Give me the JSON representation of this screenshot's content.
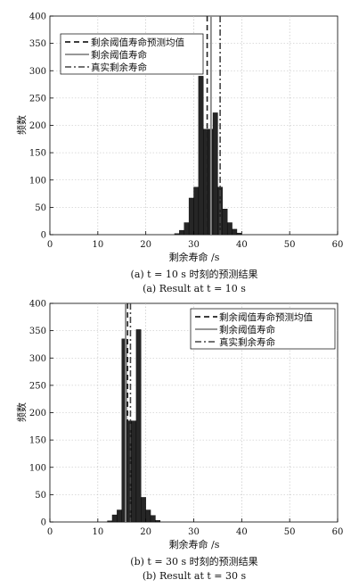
{
  "chart_data": [
    {
      "type": "bar",
      "caption_cn": "(a) t = 10 s 时刻的预测结果",
      "caption_en": "(a) Result at t = 10 s",
      "xlabel": "剩余寿命  /s",
      "ylabel": "频数",
      "xlim": [
        0,
        60
      ],
      "ylim": [
        0,
        400
      ],
      "xticks": [
        "0",
        "10",
        "20",
        "30",
        "40",
        "50",
        "60"
      ],
      "yticks": [
        "0",
        "50",
        "100",
        "150",
        "200",
        "250",
        "300",
        "350",
        "400"
      ],
      "grid": true,
      "legend_position": "top-left",
      "bins": [
        {
          "x0": 26,
          "x1": 27,
          "count": 2
        },
        {
          "x0": 27,
          "x1": 28,
          "count": 8
        },
        {
          "x0": 28,
          "x1": 29,
          "count": 22
        },
        {
          "x0": 29,
          "x1": 30,
          "count": 67
        },
        {
          "x0": 30,
          "x1": 31,
          "count": 87
        },
        {
          "x0": 31,
          "x1": 32,
          "count": 290
        },
        {
          "x0": 32,
          "x1": 33,
          "count": 193
        },
        {
          "x0": 33,
          "x1": 34,
          "count": 193
        },
        {
          "x0": 34,
          "x1": 35,
          "count": 223
        },
        {
          "x0": 35,
          "x1": 36,
          "count": 87
        },
        {
          "x0": 36,
          "x1": 37,
          "count": 47
        },
        {
          "x0": 37,
          "x1": 38,
          "count": 22
        },
        {
          "x0": 38,
          "x1": 39,
          "count": 10
        },
        {
          "x0": 39,
          "x1": 40,
          "count": 3
        }
      ],
      "lines": [
        {
          "name": "剩余阈值寿命预测均值",
          "x": 32.8,
          "style": "dashed",
          "color": "#222222"
        },
        {
          "name": "剩余阈值寿命",
          "x": 33.6,
          "style": "solid",
          "color": "#888888"
        },
        {
          "name": "真实剩余寿命",
          "x": 35.5,
          "style": "dashdot",
          "color": "#444444"
        }
      ]
    },
    {
      "type": "bar",
      "caption_cn": "(b) t = 30 s 时刻的预测结果",
      "caption_en": "(b) Result at t = 30 s",
      "xlabel": "剩余寿命  /s",
      "ylabel": "频数",
      "xlim": [
        0,
        60
      ],
      "ylim": [
        0,
        400
      ],
      "xticks": [
        "0",
        "10",
        "20",
        "30",
        "40",
        "50",
        "60"
      ],
      "yticks": [
        "0",
        "50",
        "100",
        "150",
        "200",
        "250",
        "300",
        "350",
        "400"
      ],
      "grid": true,
      "legend_position": "top-right",
      "bins": [
        {
          "x0": 12,
          "x1": 13,
          "count": 2
        },
        {
          "x0": 13,
          "x1": 14,
          "count": 13
        },
        {
          "x0": 14,
          "x1": 15,
          "count": 22
        },
        {
          "x0": 15,
          "x1": 16,
          "count": 335
        },
        {
          "x0": 16,
          "x1": 17,
          "count": 185
        },
        {
          "x0": 17,
          "x1": 18,
          "count": 185
        },
        {
          "x0": 18,
          "x1": 19,
          "count": 352
        },
        {
          "x0": 19,
          "x1": 20,
          "count": 45
        },
        {
          "x0": 20,
          "x1": 21,
          "count": 22
        },
        {
          "x0": 21,
          "x1": 22,
          "count": 12
        },
        {
          "x0": 22,
          "x1": 23,
          "count": 3
        }
      ],
      "lines": [
        {
          "name": "剩余阈值寿命预测均值",
          "x": 16.2,
          "style": "dashed",
          "color": "#222222"
        },
        {
          "name": "剩余阈值寿命",
          "x": 15.8,
          "style": "solid",
          "color": "#888888"
        },
        {
          "name": "真实剩余寿命",
          "x": 16.8,
          "style": "dashdot",
          "color": "#444444"
        }
      ]
    }
  ]
}
